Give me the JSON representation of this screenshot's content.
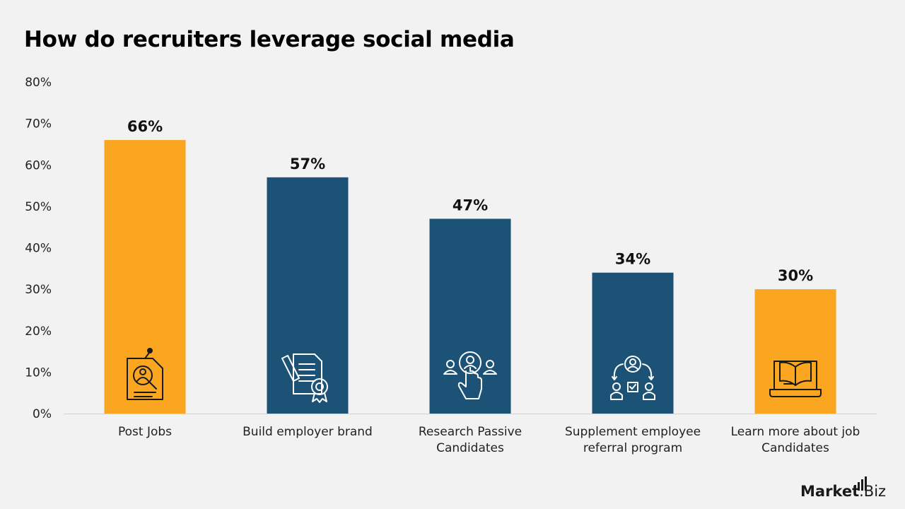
{
  "title": "How do recruiters leverage social media",
  "colors": {
    "orange": "#FAA621",
    "navy": "#1C5275",
    "background": "#f2f2f2",
    "axis": "#d0d0d0"
  },
  "logo": {
    "text_main": "Market",
    "text_suffix": ".Biz"
  },
  "chart_data": {
    "type": "bar",
    "title": "How do recruiters leverage social media",
    "xlabel": "",
    "ylabel": "",
    "ylim": [
      0,
      80
    ],
    "yticks": [
      0,
      10,
      20,
      30,
      40,
      50,
      60,
      70,
      80
    ],
    "ytick_suffix": "%",
    "grid": false,
    "categories": [
      "Post Jobs",
      "Build employer brand",
      "Research Passive Candidates",
      "Supplement employee referral program",
      "Learn more about job Candidates"
    ],
    "category_lines": [
      [
        "Post Jobs"
      ],
      [
        "Build employer brand"
      ],
      [
        "Research Passive",
        "Candidates"
      ],
      [
        "Supplement employee",
        "referral program"
      ],
      [
        "Learn more about job",
        "Candidates"
      ]
    ],
    "values": [
      66,
      57,
      47,
      34,
      30
    ],
    "data_labels": [
      "66%",
      "57%",
      "47%",
      "34%",
      "30%"
    ],
    "bar_colors": [
      "#FAA621",
      "#1C5275",
      "#1C5275",
      "#1C5275",
      "#FAA621"
    ],
    "icons": [
      "job-search-icon",
      "certificate-icon",
      "click-candidates-icon",
      "referral-icon",
      "laptop-book-icon"
    ]
  }
}
